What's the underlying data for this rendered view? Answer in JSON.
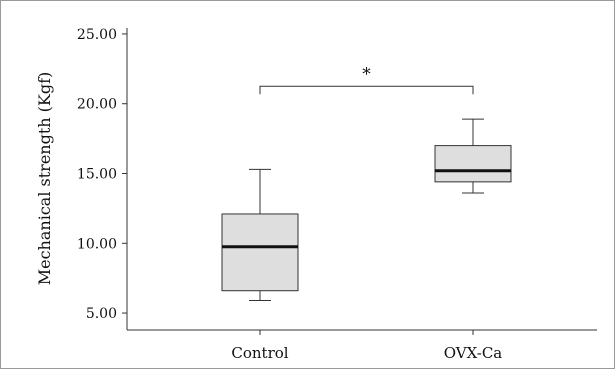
{
  "chart_data": {
    "type": "boxplot",
    "title": "",
    "xlabel": "",
    "ylabel": "Mechanical strength (Kgf)",
    "ylim": [
      4.0,
      26.0
    ],
    "yticks": [
      5.0,
      10.0,
      15.0,
      20.0,
      25.0
    ],
    "ytick_labels": [
      "5.00",
      "10.00",
      "15.00",
      "20.00",
      "25.00"
    ],
    "categories": [
      "Control",
      "OVX-Ca"
    ],
    "boxes": [
      {
        "category": "Control",
        "whisker_low": 5.9,
        "q1": 6.6,
        "median": 9.75,
        "q3": 12.1,
        "whisker_high": 15.3
      },
      {
        "category": "OVX-Ca",
        "whisker_low": 13.6,
        "q1": 14.4,
        "median": 15.2,
        "q3": 17.0,
        "whisker_high": 18.9
      }
    ],
    "significance": {
      "between": [
        "Control",
        "OVX-Ca"
      ],
      "level": 21.25,
      "label": "*"
    },
    "colors": {
      "box_fill": "#dedede",
      "box_stroke": "#333333",
      "median": "#111111",
      "axis": "#333333"
    }
  }
}
